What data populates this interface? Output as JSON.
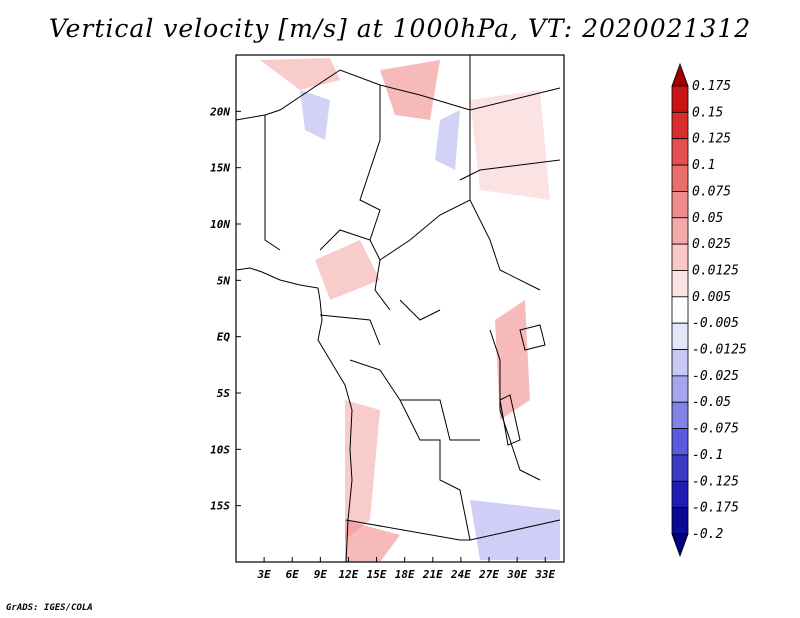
{
  "title": "Vertical velocity [m/s] at 1000hPa, VT: 2020021312",
  "credit": "GrADS: IGES/COLA",
  "map": {
    "lat_labels": [
      "20N",
      "15N",
      "10N",
      "5N",
      "EQ",
      "5S",
      "10S",
      "15S"
    ],
    "lat_values": [
      20,
      15,
      10,
      5,
      0,
      -5,
      -10,
      -15
    ],
    "lon_labels": [
      "3E",
      "6E",
      "9E",
      "12E",
      "15E",
      "18E",
      "21E",
      "24E",
      "27E",
      "30E",
      "33E"
    ],
    "lon_values": [
      3,
      6,
      9,
      12,
      15,
      18,
      21,
      24,
      27,
      30,
      33
    ],
    "lat_range": [
      -20,
      25
    ],
    "lon_range": [
      0,
      35
    ]
  },
  "colorbar": {
    "labels": [
      "0.175",
      "0.15",
      "0.125",
      "0.1",
      "0.075",
      "0.05",
      "0.025",
      "0.0125",
      "0.005",
      "-0.005",
      "-0.0125",
      "-0.025",
      "-0.05",
      "-0.075",
      "-0.1",
      "-0.125",
      "-0.175",
      "-0.2"
    ],
    "colors": [
      "#a00000",
      "#c81414",
      "#dc2d2d",
      "#e65050",
      "#eb6e6e",
      "#f08c8c",
      "#f5aaaa",
      "#fac8c8",
      "#fde4e4",
      "#ffffff",
      "#e4e4fa",
      "#c8c8f5",
      "#a5a5f0",
      "#8282e6",
      "#5a5adc",
      "#3c3cc8",
      "#1e1eb4",
      "#0a0a96",
      "#000080"
    ]
  }
}
